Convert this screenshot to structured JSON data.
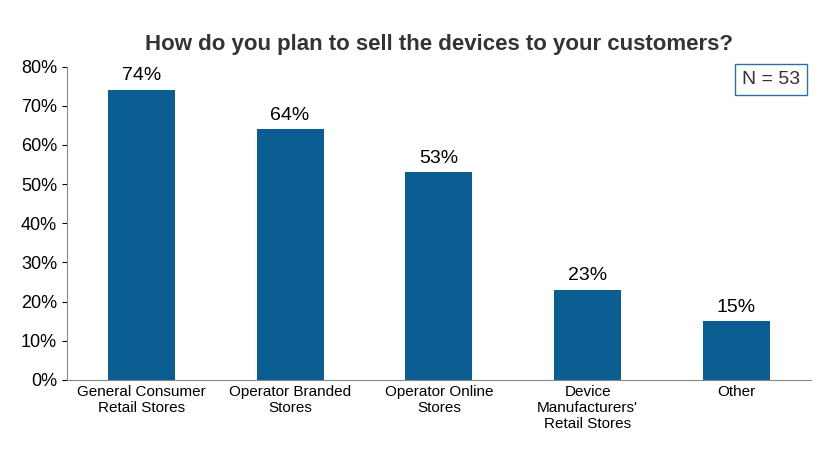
{
  "chart_data": {
    "type": "bar",
    "title": "How do you plan to sell the devices to your customers?",
    "categories": [
      "General Consumer Retail Stores",
      "Operator Branded Stores",
      "Operator Online Stores",
      "Device Manufacturers' Retail Stores",
      "Other"
    ],
    "values": [
      74,
      64,
      53,
      23,
      15
    ],
    "value_labels": [
      "74%",
      "64%",
      "53%",
      "23%",
      "15%"
    ],
    "data_labels": true,
    "color": "#0b5e92",
    "ylim": [
      0,
      80
    ],
    "yticks": [
      {
        "value": 0,
        "label": "0%"
      },
      {
        "value": 10,
        "label": "10%"
      },
      {
        "value": 20,
        "label": "20%"
      },
      {
        "value": 30,
        "label": "30%"
      },
      {
        "value": 40,
        "label": "40%"
      },
      {
        "value": 50,
        "label": "50%"
      },
      {
        "value": 60,
        "label": "60%"
      },
      {
        "value": 70,
        "label": "70%"
      },
      {
        "value": 80,
        "label": "80%"
      }
    ],
    "grid": false,
    "annotations": [
      "N = 53"
    ]
  }
}
